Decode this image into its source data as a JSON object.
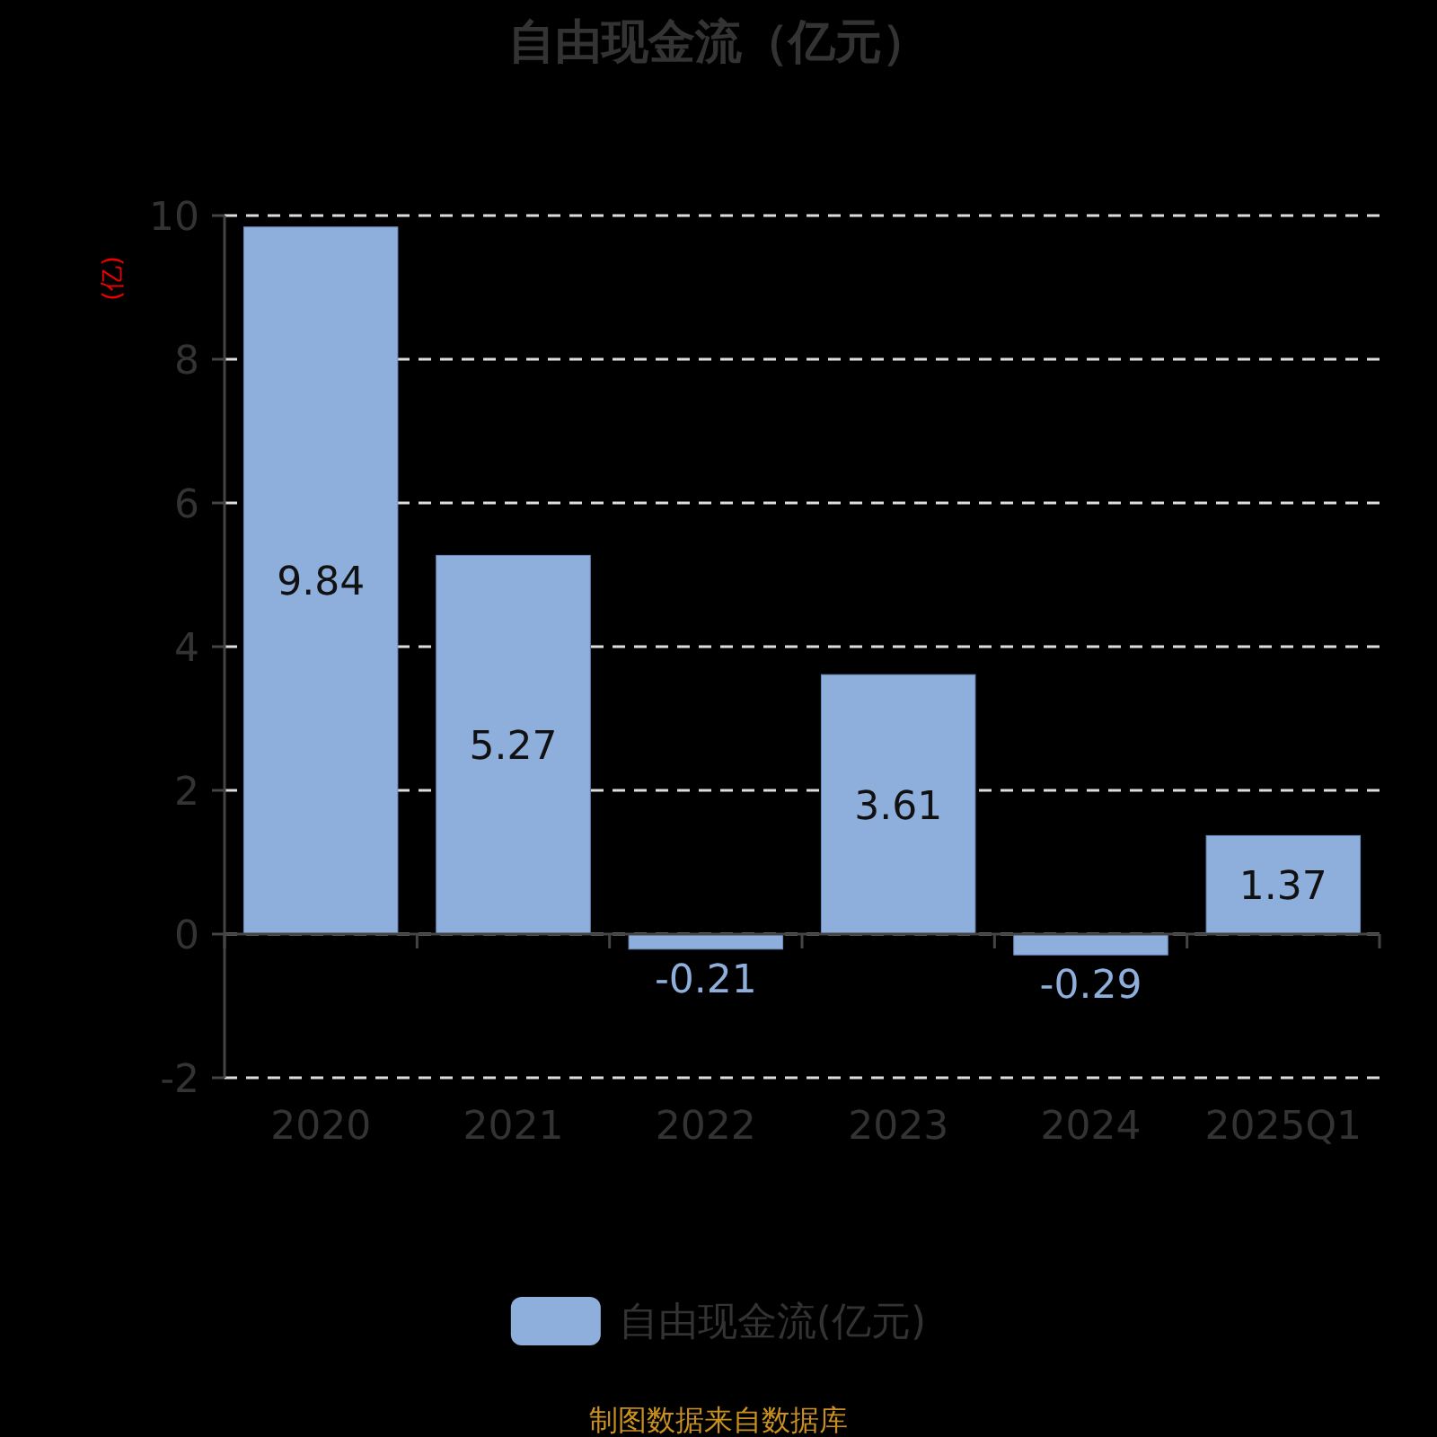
{
  "chart_data": {
    "type": "bar",
    "title": "自由现金流（亿元）",
    "ylabel": "(亿)",
    "categories": [
      "2020",
      "2021",
      "2022",
      "2023",
      "2024",
      "2025Q1"
    ],
    "series": [
      {
        "name": "自由现金流(亿元)",
        "color": "#8eaedb",
        "values": [
          9.84,
          5.27,
          -0.21,
          3.61,
          -0.29,
          1.37
        ]
      }
    ],
    "ylim": [
      -2,
      10
    ],
    "yticks": [
      -2,
      0,
      2,
      4,
      6,
      8,
      10
    ],
    "grid": "y",
    "legend": "bottom",
    "data_labels": true,
    "annotations": [
      "制图数据来自数据库"
    ]
  }
}
